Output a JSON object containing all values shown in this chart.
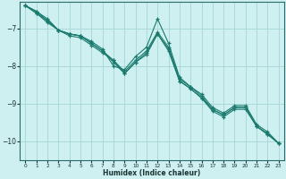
{
  "xlabel": "Humidex (Indice chaleur)",
  "background_color": "#cff0f0",
  "grid_color": "#aad8d8",
  "line_color": "#1a7a6e",
  "xlim": [
    -0.5,
    23.5
  ],
  "ylim": [
    -10.5,
    -6.3
  ],
  "yticks": [
    -10,
    -9,
    -8,
    -7
  ],
  "xticks": [
    0,
    1,
    2,
    3,
    4,
    5,
    6,
    7,
    8,
    9,
    10,
    11,
    12,
    13,
    14,
    15,
    16,
    17,
    18,
    19,
    20,
    21,
    22,
    23
  ],
  "series": [
    [
      0,
      -6.4,
      1,
      -6.55,
      2,
      -6.75,
      3,
      -7.05,
      4,
      -7.15,
      5,
      -7.2,
      6,
      -7.35,
      7,
      -7.55,
      8,
      -8.0,
      9,
      -8.1,
      10,
      -7.75,
      11,
      -7.5,
      12,
      -6.75,
      13,
      -7.4,
      14,
      -8.3,
      15,
      -8.55,
      16,
      -8.75,
      17,
      -9.1,
      18,
      -9.25,
      19,
      -9.05,
      20,
      -9.05,
      21,
      -9.55,
      22,
      -9.75,
      23,
      -10.05
    ],
    [
      0,
      -6.4,
      1,
      -6.6,
      2,
      -6.8,
      3,
      -7.05,
      4,
      -7.15,
      5,
      -7.2,
      6,
      -7.4,
      7,
      -7.6,
      8,
      -7.85,
      9,
      -8.15,
      10,
      -7.85,
      11,
      -7.6,
      12,
      -7.1,
      13,
      -7.5,
      14,
      -8.35,
      15,
      -8.55,
      16,
      -8.8,
      17,
      -9.15,
      18,
      -9.3,
      19,
      -9.1,
      20,
      -9.1,
      21,
      -9.6,
      22,
      -9.8,
      23,
      -10.05
    ],
    [
      0,
      -6.4,
      1,
      -6.55,
      2,
      -6.8,
      3,
      -7.05,
      4,
      -7.15,
      5,
      -7.2,
      6,
      -7.4,
      7,
      -7.6,
      8,
      -7.9,
      9,
      -8.2,
      10,
      -7.9,
      11,
      -7.65,
      12,
      -7.15,
      13,
      -7.55,
      14,
      -8.4,
      15,
      -8.6,
      16,
      -8.85,
      17,
      -9.15,
      18,
      -9.3,
      19,
      -9.1,
      20,
      -9.1,
      21,
      -9.6,
      22,
      -9.8,
      23,
      -10.05
    ],
    [
      0,
      -6.4,
      1,
      -6.6,
      2,
      -6.85,
      3,
      -7.05,
      4,
      -7.2,
      5,
      -7.25,
      6,
      -7.45,
      7,
      -7.65,
      8,
      -7.85,
      9,
      -8.2,
      10,
      -7.9,
      11,
      -7.7,
      12,
      -7.15,
      13,
      -7.6,
      14,
      -8.4,
      15,
      -8.6,
      16,
      -8.85,
      17,
      -9.2,
      18,
      -9.35,
      19,
      -9.15,
      20,
      -9.15,
      21,
      -9.6,
      22,
      -9.82,
      23,
      -10.05
    ]
  ]
}
